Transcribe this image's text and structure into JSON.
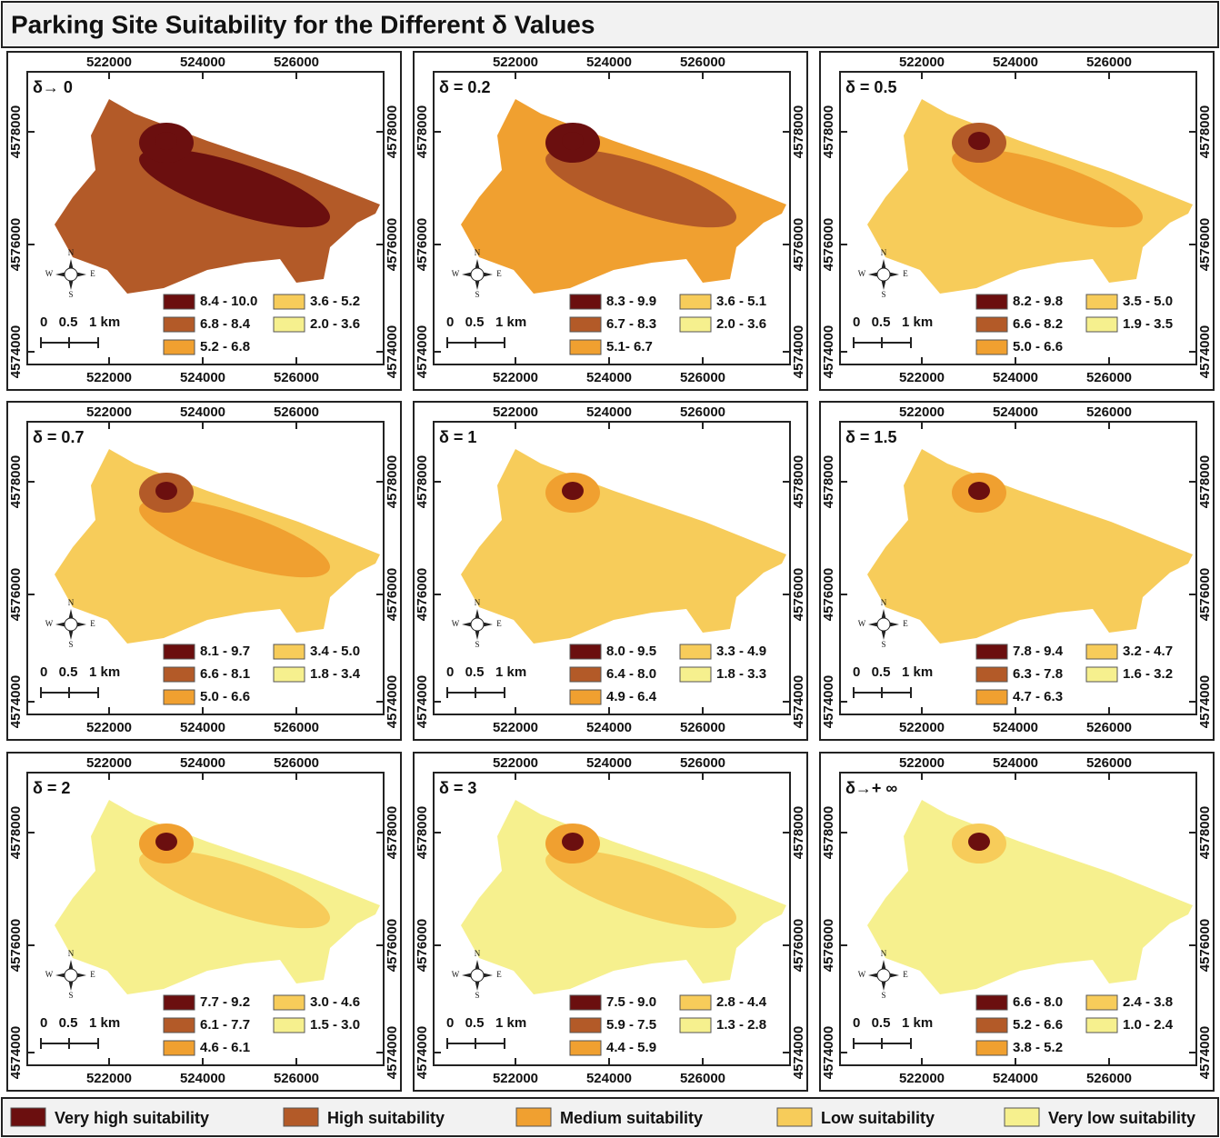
{
  "title": "Parking Site Suitability for the Different δ Values",
  "x_ticks": [
    "522000",
    "524000",
    "526000"
  ],
  "y_ticks": [
    "4578000",
    "4576000",
    "4574000"
  ],
  "scale_labels": [
    "0",
    "0.5",
    "1 km"
  ],
  "compass": [
    "N",
    "S",
    "W",
    "E"
  ],
  "panels": [
    {
      "label": "δ→ 0",
      "ranges": [
        "8.4 - 10.0",
        "6.8 - 8.4",
        "5.2 - 6.8",
        "3.6 - 5.2",
        "2.0 - 3.6"
      ]
    },
    {
      "label": "δ = 0.2",
      "ranges": [
        "8.3 - 9.9",
        "6.7 - 8.3",
        "5.1- 6.7",
        "3.6 - 5.1",
        "2.0 - 3.6"
      ]
    },
    {
      "label": "δ = 0.5",
      "ranges": [
        "8.2 - 9.8",
        "6.6 - 8.2",
        "5.0 - 6.6",
        "3.5 - 5.0",
        "1.9 - 3.5"
      ]
    },
    {
      "label": "δ = 0.7",
      "ranges": [
        "8.1 - 9.7",
        "6.6 - 8.1",
        "5.0 - 6.6",
        "3.4 - 5.0",
        "1.8 - 3.4"
      ]
    },
    {
      "label": "δ = 1",
      "ranges": [
        "8.0 - 9.5",
        "6.4 - 8.0",
        "4.9 - 6.4",
        "3.3 - 4.9",
        "1.8 - 3.3"
      ]
    },
    {
      "label": "δ = 1.5",
      "ranges": [
        "7.8 - 9.4",
        "6.3 - 7.8",
        "4.7 - 6.3",
        "3.2 - 4.7",
        "1.6 - 3.2"
      ]
    },
    {
      "label": "δ = 2",
      "ranges": [
        "7.7 - 9.2",
        "6.1 - 7.7",
        "4.6 - 6.1",
        "3.0 - 4.6",
        "1.5 - 3.0"
      ]
    },
    {
      "label": "δ = 3",
      "ranges": [
        "7.5 - 9.0",
        "5.9 - 7.5",
        "4.4 - 5.9",
        "2.8 - 4.4",
        "1.3 - 2.8"
      ]
    },
    {
      "label": "δ→+ ∞",
      "ranges": [
        "6.6 - 8.0",
        "5.2 - 6.6",
        "3.8 - 5.2",
        "2.4 - 3.8",
        "1.0 - 2.4"
      ]
    }
  ],
  "legend": [
    {
      "label": "Very high suitability",
      "color": "#6b0f0f"
    },
    {
      "label": "High suitability",
      "color": "#b35a28"
    },
    {
      "label": "Medium suitability",
      "color": "#f0a030"
    },
    {
      "label": "Low suitability",
      "color": "#f7cc5a"
    },
    {
      "label": "Very low suitability",
      "color": "#f6f08e"
    }
  ]
}
